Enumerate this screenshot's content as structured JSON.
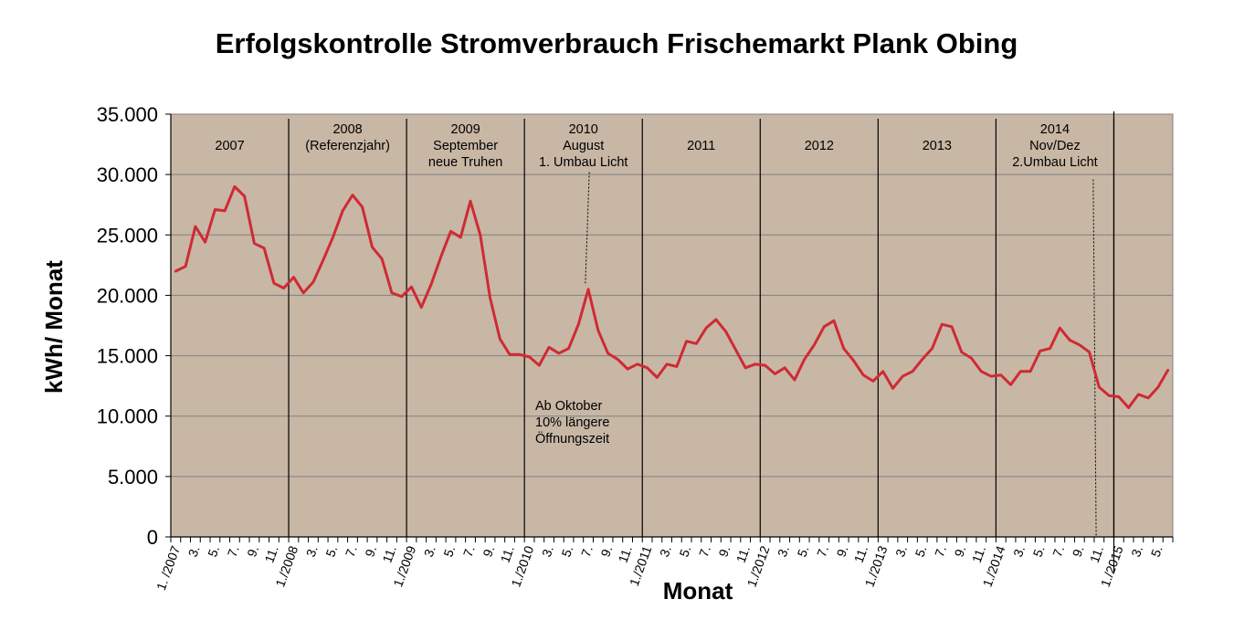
{
  "chart_data": {
    "type": "line",
    "title": "Erfolgskontrolle Stromverbrauch Frischemarkt Plank Obing",
    "xlabel": "Monat",
    "ylabel": "kWh/ Monat",
    "ylim": [
      0,
      35000
    ],
    "yticks": [
      0,
      5000,
      10000,
      15000,
      20000,
      25000,
      30000,
      35000
    ],
    "ytick_labels": [
      "0",
      "5.000",
      "10.000",
      "15.000",
      "20.000",
      "25.000",
      "30.000",
      "35.000"
    ],
    "grid": true,
    "background_color": "#c8b7a5",
    "line_color": "#d02a34",
    "categories": [
      "1. /2007",
      "",
      "3.",
      "",
      "5.",
      "",
      "7.",
      "",
      "9.",
      "",
      "11.",
      "",
      "1./2008",
      "",
      "3.",
      "",
      "5.",
      "",
      "7.",
      "",
      "9.",
      "",
      "11.",
      "",
      "1./2009",
      "",
      "3.",
      "",
      "5.",
      "",
      "7.",
      "",
      "9.",
      "",
      "11.",
      "",
      "1./2010",
      "",
      "3.",
      "",
      "5.",
      "",
      "7.",
      "",
      "9.",
      "",
      "11.",
      "",
      "1./2011",
      "",
      "3.",
      "",
      "5.",
      "",
      "7.",
      "",
      "9.",
      "",
      "11.",
      "",
      "1./2012",
      "",
      "3.",
      "",
      "5.",
      "",
      "7.",
      "",
      "9.",
      "",
      "11.",
      "",
      "1./2013",
      "",
      "3.",
      "",
      "5.",
      "",
      "7.",
      "",
      "9.",
      "",
      "11.",
      "",
      "1./2014",
      "",
      "3.",
      "",
      "5.",
      "",
      "7.",
      "",
      "9.",
      "",
      "11.",
      "",
      "1./2015",
      "",
      "3.",
      "",
      "5.",
      ""
    ],
    "series": [
      {
        "name": "Stromverbrauch",
        "values": [
          22000,
          22400,
          25700,
          24400,
          27100,
          27000,
          29000,
          28200,
          24300,
          23900,
          21000,
          20600,
          21500,
          20200,
          21100,
          22900,
          24800,
          27000,
          28300,
          27300,
          24000,
          23000,
          20200,
          19900,
          20700,
          19000,
          20900,
          23200,
          25300,
          24800,
          27800,
          25000,
          19800,
          16400,
          15100,
          15100,
          14900,
          14200,
          15700,
          15200,
          15600,
          17600,
          20500,
          17100,
          15200,
          14700,
          13900,
          14300,
          14000,
          13200,
          14300,
          14100,
          16200,
          16000,
          17300,
          18000,
          17000,
          15500,
          14000,
          14300,
          14200,
          13500,
          14000,
          13000,
          14700,
          15900,
          17400,
          17900,
          15600,
          14600,
          13400,
          12900,
          13700,
          12300,
          13300,
          13700,
          14700,
          15600,
          17600,
          17400,
          15300,
          14800,
          13700,
          13300,
          13400,
          12600,
          13700,
          13700,
          15400,
          15600,
          17300,
          16300,
          15900,
          15300,
          12400,
          11700,
          11600,
          10700,
          11800,
          11500,
          12400,
          13800
        ]
      }
    ],
    "year_labels": [
      {
        "lines": [
          "2007"
        ],
        "month_index": 5.5
      },
      {
        "lines": [
          "2008",
          "(Referenzjahr)"
        ],
        "month_index": 17.5
      },
      {
        "lines": [
          "2009",
          "September",
          "neue Truhen"
        ],
        "month_index": 29.5
      },
      {
        "lines": [
          "2010",
          "August",
          "1. Umbau Licht"
        ],
        "month_index": 41.5
      },
      {
        "lines": [
          "2011"
        ],
        "month_index": 53.5
      },
      {
        "lines": [
          "2012"
        ],
        "month_index": 65.5
      },
      {
        "lines": [
          "2013"
        ],
        "month_index": 77.5
      },
      {
        "lines": [
          "2014",
          "Nov/Dez",
          "2.Umbau Licht"
        ],
        "month_index": 89.5
      }
    ],
    "year_separators_month_index": [
      11.5,
      23.5,
      35.5,
      47.5,
      59.5,
      71.5,
      83.5,
      95.5
    ],
    "extra_separator_month_index": 95.5,
    "annotation_oktober": {
      "lines": [
        "Ab Oktober",
        "10% längere",
        "Öffnungszeit"
      ],
      "month_index": 36.6,
      "value": 10500
    },
    "pointer_lines": [
      {
        "from_month": 42.1,
        "from_value": 30200,
        "to_month": 41.7,
        "to_value": 21000
      },
      {
        "from_month": 93.4,
        "from_value": 29600,
        "to_month": 93.7,
        "to_value": 0
      }
    ]
  }
}
